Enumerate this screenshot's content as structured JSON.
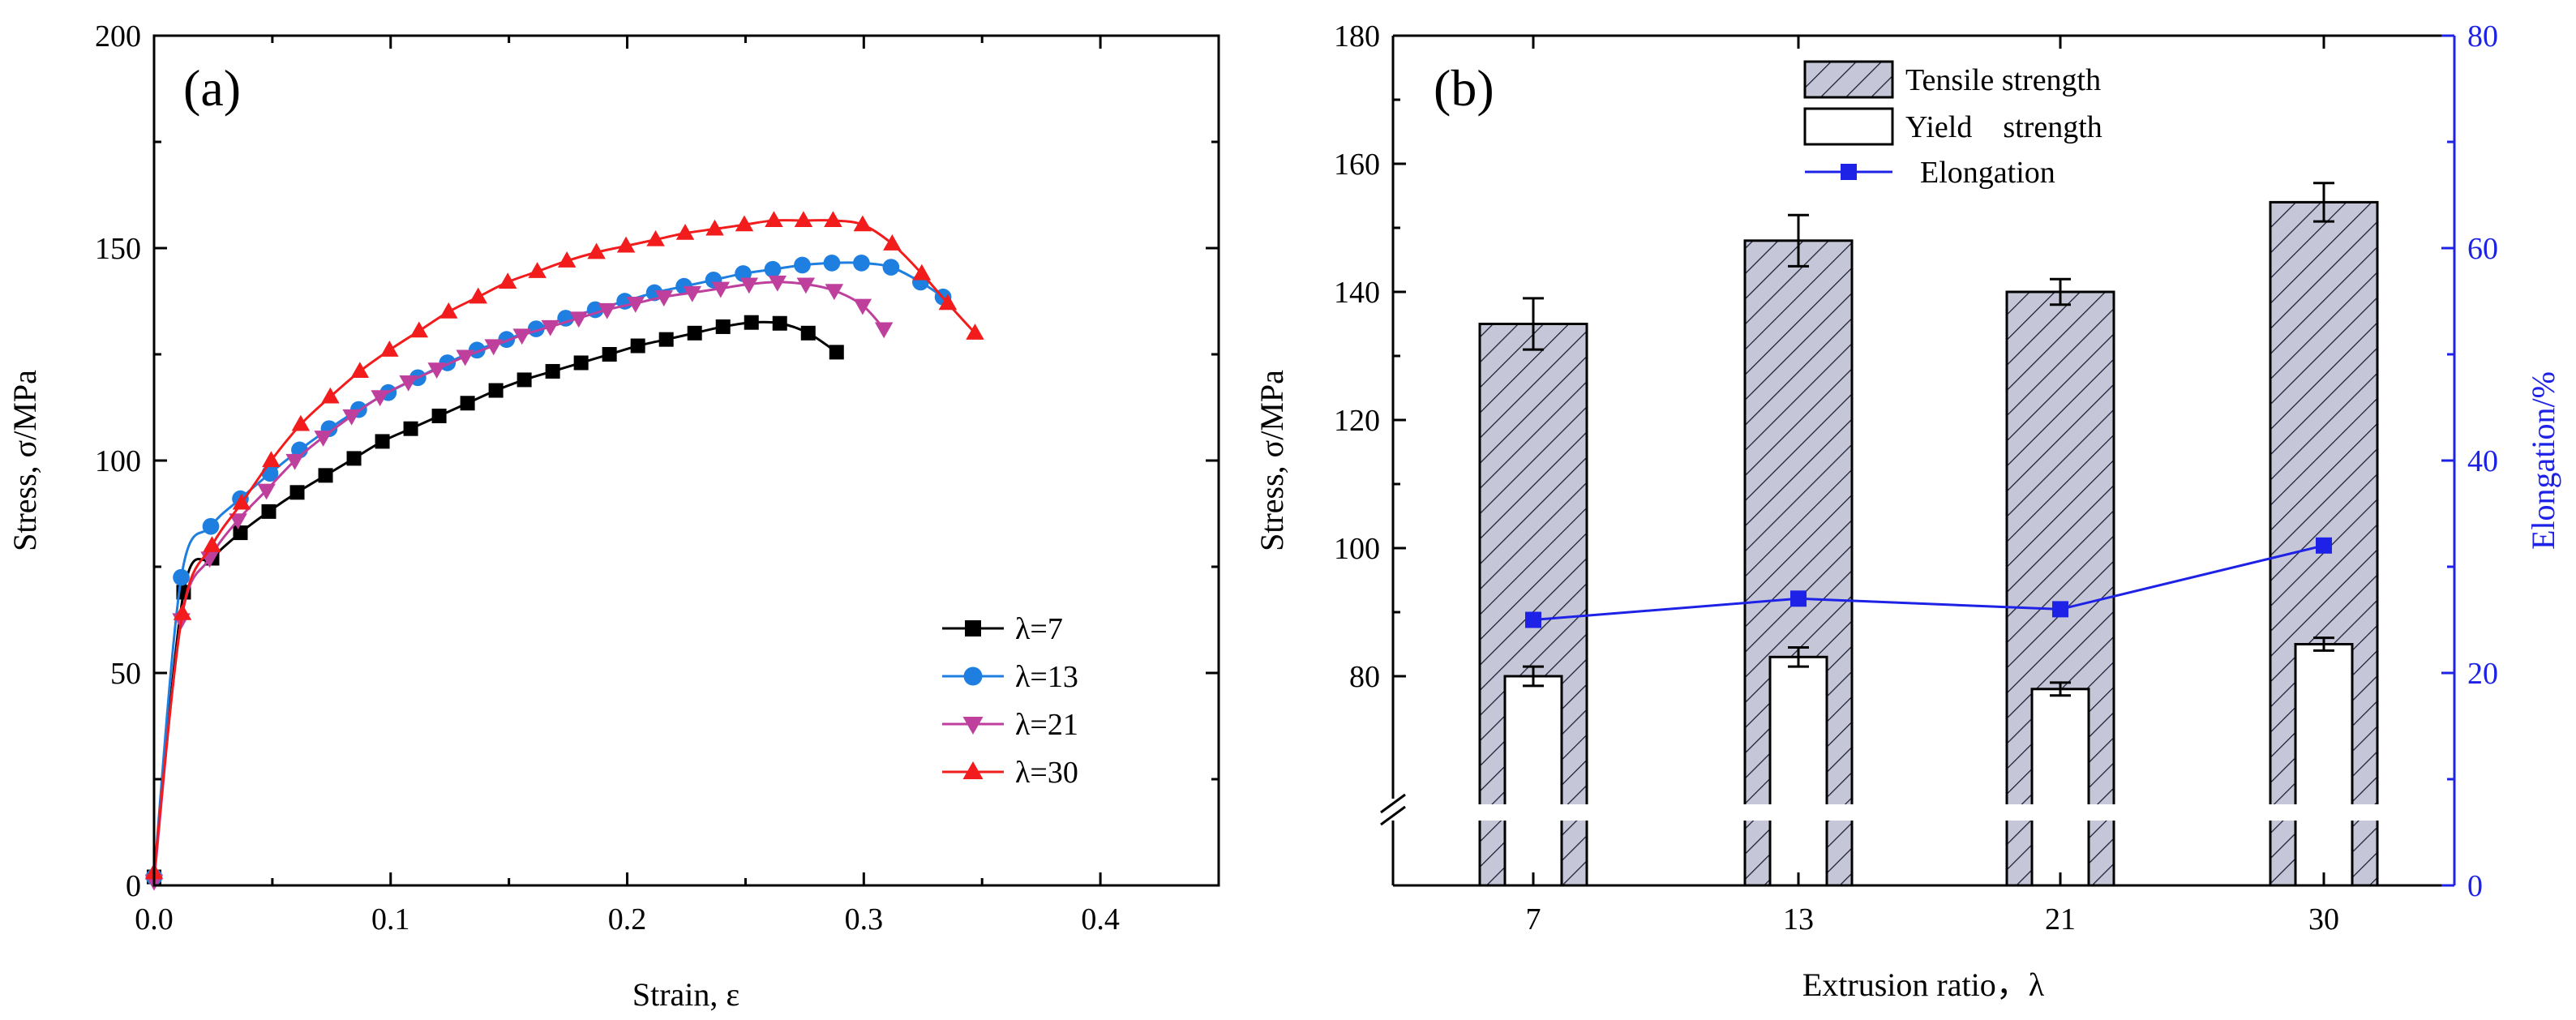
{
  "colors": {
    "lambda7": "#000000",
    "lambda13": "#1e7fe0",
    "lambda21": "#bf3f9d",
    "lambda30": "#f21c1c",
    "tensile_fill": "#c5c7d9",
    "elongation": "#1e22e6",
    "right_axis": "#1e22e6"
  },
  "chart_data": [
    {
      "panel": "(a)",
      "type": "line",
      "xlabel": "Strain, ε",
      "ylabel": "Stress, σ/MPa",
      "xlim": [
        0,
        0.45
      ],
      "ylim": [
        0,
        200
      ],
      "xticks": [
        0.0,
        0.1,
        0.2,
        0.3,
        0.4
      ],
      "xtick_labels": [
        "0.0",
        "0.1",
        "0.2",
        "0.3",
        "0.4"
      ],
      "yticks": [
        0,
        50,
        100,
        150,
        200
      ],
      "ytick_labels": [
        "0",
        "50",
        "100",
        "150",
        "200"
      ],
      "legend_position": "lower-right",
      "series": [
        {
          "name": "λ=7",
          "marker": "square",
          "color": "#000000",
          "x": [
            0,
            0.0125,
            0.0245,
            0.0365,
            0.0485,
            0.0605,
            0.0725,
            0.0845,
            0.0965,
            0.1085,
            0.1205,
            0.1325,
            0.1445,
            0.1565,
            0.1685,
            0.1805,
            0.1925,
            0.2045,
            0.2165,
            0.2285,
            0.2405,
            0.2525,
            0.2645,
            0.2765,
            0.2885
          ],
          "y": [
            2,
            69,
            77,
            83,
            88,
            92.5,
            96.5,
            100.5,
            104.5,
            107.5,
            110.5,
            113.5,
            116.5,
            119,
            121,
            123,
            125,
            127,
            128.5,
            130,
            131.5,
            132.5,
            132.3,
            130,
            125.5
          ]
        },
        {
          "name": "λ=13",
          "marker": "circle",
          "color": "#1e7fe0",
          "x": [
            0,
            0.0115,
            0.024,
            0.0365,
            0.049,
            0.0615,
            0.074,
            0.0865,
            0.099,
            0.1115,
            0.124,
            0.1365,
            0.149,
            0.1615,
            0.174,
            0.1865,
            0.199,
            0.2115,
            0.224,
            0.2365,
            0.249,
            0.2615,
            0.274,
            0.2865,
            0.299,
            0.3115,
            0.324,
            0.3335
          ],
          "y": [
            2,
            72.5,
            84.5,
            91,
            97,
            102.5,
            107.5,
            112,
            116,
            119.5,
            123,
            126,
            128.5,
            131,
            133.5,
            135.5,
            137.5,
            139.5,
            141,
            142.5,
            144,
            145,
            146,
            146.5,
            146.5,
            145.5,
            142,
            138.5
          ]
        },
        {
          "name": "λ=21",
          "marker": "triangle-down",
          "color": "#bf3f9d",
          "x": [
            0,
            0.0115,
            0.0235,
            0.0355,
            0.0475,
            0.0595,
            0.0715,
            0.0835,
            0.0955,
            0.1075,
            0.1195,
            0.1315,
            0.1435,
            0.1555,
            0.1675,
            0.1795,
            0.1915,
            0.2035,
            0.2155,
            0.2275,
            0.2395,
            0.2515,
            0.2635,
            0.2755,
            0.2875,
            0.2995,
            0.3085
          ],
          "y": [
            1,
            62.5,
            77,
            86,
            93,
            100,
            105.5,
            110.5,
            115,
            118.5,
            121.5,
            124.5,
            127,
            129.5,
            131.5,
            133.5,
            135.5,
            137,
            138.5,
            139.5,
            140.5,
            141.5,
            142,
            141.5,
            140,
            136.5,
            131
          ]
        },
        {
          "name": "λ=30",
          "marker": "triangle-up",
          "color": "#f21c1c",
          "x": [
            0,
            0.012,
            0.0245,
            0.037,
            0.0495,
            0.062,
            0.0745,
            0.087,
            0.0995,
            0.112,
            0.1245,
            0.137,
            0.1495,
            0.162,
            0.1745,
            0.187,
            0.1995,
            0.212,
            0.2245,
            0.237,
            0.2495,
            0.262,
            0.2745,
            0.287,
            0.2995,
            0.312,
            0.3245,
            0.3355,
            0.347
          ],
          "y": [
            3,
            64,
            80,
            90,
            100,
            108.5,
            115,
            121,
            126,
            130.5,
            135,
            138.5,
            142,
            144.5,
            147,
            149,
            150.5,
            152,
            153.5,
            154.5,
            155.5,
            156.5,
            156.5,
            156.5,
            155.5,
            151,
            144,
            137,
            130
          ]
        }
      ]
    },
    {
      "panel": "(b)",
      "type": "bar",
      "xlabel": "Extrusion ratio，λ",
      "ylabel": "Stress, σ/MPa",
      "ylabel_right": "Elongation/%",
      "categories": [
        "7",
        "13",
        "21",
        "30"
      ],
      "ylim": [
        50,
        180
      ],
      "ylim_right": [
        0,
        80
      ],
      "y_axis_break": true,
      "yticks": [
        80,
        100,
        120,
        140,
        160,
        180
      ],
      "ytick_labels": [
        "80",
        "100",
        "120",
        "140",
        "160",
        "180"
      ],
      "yticks_right": [
        0,
        20,
        40,
        60,
        80
      ],
      "ytick_labels_right": [
        "0",
        "20",
        "40",
        "60",
        "80"
      ],
      "legend_position": "top-center",
      "series": [
        {
          "name": "Tensile strength",
          "type": "bar",
          "pattern": "hatched",
          "values": [
            135,
            148,
            140,
            154
          ],
          "errors": [
            4,
            4,
            2,
            3
          ]
        },
        {
          "name": "Yield    strength",
          "type": "bar",
          "pattern": "white",
          "values": [
            80,
            83,
            78,
            85
          ],
          "errors": [
            1.5,
            1.5,
            1,
            1
          ]
        },
        {
          "name": "Elongation",
          "type": "line",
          "marker": "square",
          "axis": "right",
          "values": [
            25,
            27,
            26,
            32
          ]
        }
      ]
    }
  ]
}
